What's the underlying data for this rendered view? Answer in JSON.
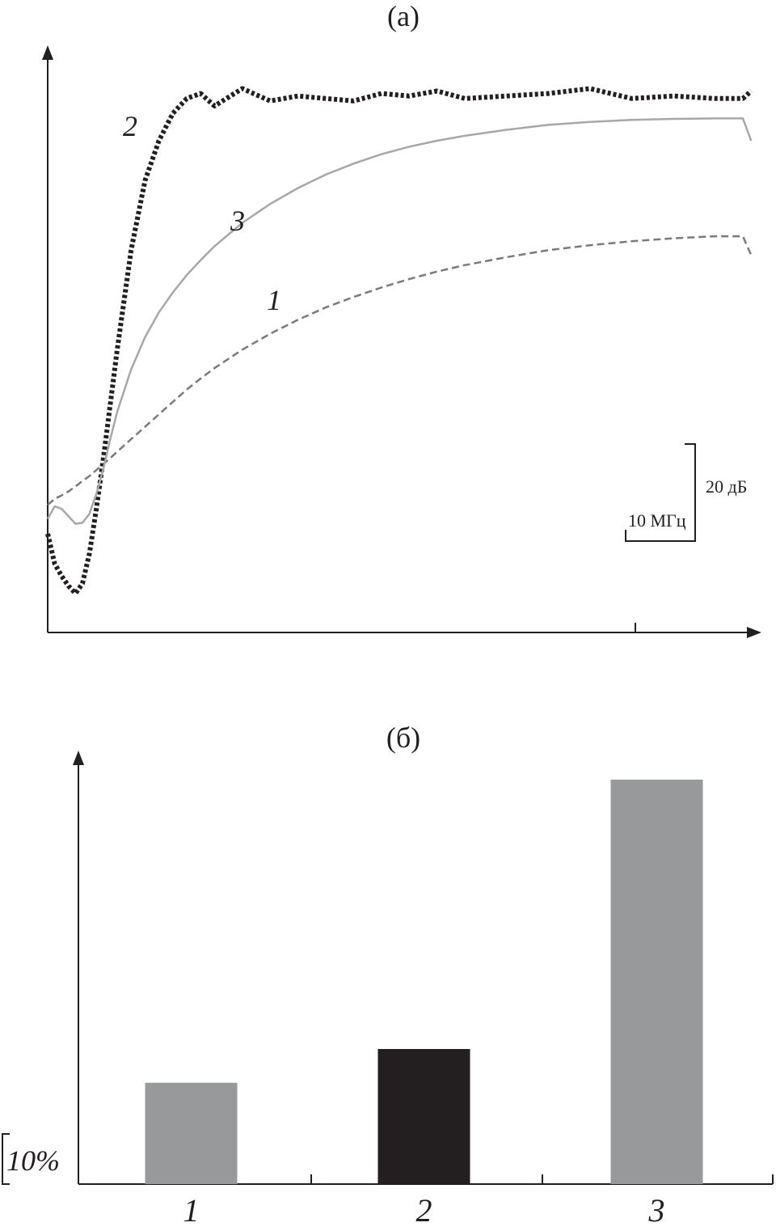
{
  "chart_data": [
    {
      "type": "line",
      "title": "(а)",
      "x_scale_bar": "10 МГц",
      "y_scale_bar": "20 дБ",
      "grid": false,
      "legend": "none",
      "x": [
        0,
        0.5,
        1,
        1.5,
        2,
        2.5,
        3,
        3.5,
        4,
        4.5,
        5,
        6,
        7,
        8,
        9,
        10,
        11,
        12,
        14,
        16,
        18,
        20,
        22,
        24,
        26,
        28,
        30,
        33,
        36,
        39,
        42,
        45,
        48,
        50,
        50.6
      ],
      "series": [
        {
          "name": "1",
          "style": "dashed",
          "color": "#7a7a7c",
          "values": [
            19.8,
            21.0,
            21.7,
            22.5,
            23.5,
            24.6,
            25.6,
            26.8,
            28.0,
            29.2,
            30.5,
            33.0,
            35.5,
            38.0,
            40.5,
            43.0,
            45.2,
            47.3,
            51.0,
            54.2,
            57.0,
            59.5,
            61.6,
            63.5,
            65.2,
            66.7,
            68.0,
            69.6,
            71.0,
            72.0,
            72.8,
            73.4,
            73.8,
            73.8,
            70.0
          ]
        },
        {
          "name": "2",
          "style": "dotted",
          "color": "#231f20",
          "values": [
            14.0,
            8.0,
            5.5,
            3.5,
            2.0,
            4.0,
            10.0,
            19.0,
            29.0,
            40.0,
            51.0,
            71.0,
            85.0,
            93.0,
            98.5,
            101.5,
            102.5,
            100.0,
            103.5,
            101.0,
            102.0,
            101.5,
            101.0,
            102.5,
            102.0,
            103.0,
            101.5,
            102.0,
            102.5,
            103.5,
            101.5,
            102.0,
            101.5,
            101.5,
            103.0
          ]
        },
        {
          "name": "3",
          "style": "solid",
          "color": "#a7a7a9",
          "values": [
            17.0,
            19.5,
            19.0,
            17.5,
            16.0,
            16.2,
            18.0,
            22.0,
            27.0,
            33.0,
            38.5,
            47.0,
            53.5,
            58.5,
            62.5,
            66.0,
            69.0,
            71.8,
            76.5,
            80.3,
            83.5,
            86.2,
            88.4,
            90.3,
            91.8,
            93.0,
            94.0,
            95.2,
            96.2,
            96.8,
            97.2,
            97.4,
            97.5,
            97.5,
            93.0
          ]
        }
      ],
      "curve_labels": [
        "2",
        "3",
        "1"
      ]
    },
    {
      "type": "bar",
      "title": "(б)",
      "y_scale_bar": "10%",
      "categories": [
        "1",
        "2",
        "3"
      ],
      "values": [
        13.2,
        17.6,
        52.7
      ],
      "colors": [
        "#98999b",
        "#231f20",
        "#98999b"
      ],
      "grid": false,
      "legend": "none"
    }
  ]
}
